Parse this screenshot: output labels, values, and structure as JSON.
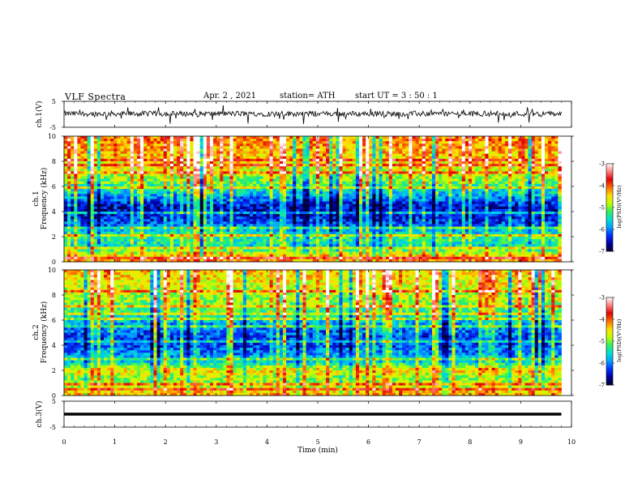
{
  "header": {
    "title": "VLF  Spectra",
    "date": "Apr. 2  , 2021",
    "station": "station= ATH",
    "start_ut": "start  UT  =   3  : 50 : 1"
  },
  "chart_data": [
    {
      "type": "line",
      "name": "ch1-waveform",
      "ylabel": "ch.1(V)",
      "ylim": [
        -5,
        5
      ],
      "yticks": [
        "5",
        "-5"
      ],
      "x_range_min": [
        0,
        9.8
      ],
      "baseline": 0.2,
      "noise_amplitude": 1.5
    },
    {
      "type": "heatmap",
      "name": "ch1-spectrogram",
      "ylabel_channel": "ch.1",
      "ylabel": "Frequency (kHz)",
      "ylim": [
        0,
        10
      ],
      "yticks": [
        "0",
        "2",
        "4",
        "6",
        "8",
        "10"
      ],
      "x_range_min": [
        0,
        9.8
      ],
      "band_profile_khz": [
        [
          0,
          -4.2
        ],
        [
          0.6,
          -4.6
        ],
        [
          1.2,
          -5.6
        ],
        [
          2.0,
          -5.3
        ],
        [
          2.6,
          -5.9
        ],
        [
          3.4,
          -6.4
        ],
        [
          4.4,
          -6.6
        ],
        [
          5.2,
          -5.9
        ],
        [
          6.4,
          -5.1
        ],
        [
          7.5,
          -4.6
        ],
        [
          10,
          -4.1
        ]
      ],
      "colorbar": {
        "label": "log(PSD)(V²/Hz)",
        "range": [
          -7,
          -3
        ],
        "ticks": [
          "-3",
          "-4",
          "-5",
          "-6",
          "-7"
        ]
      }
    },
    {
      "type": "heatmap",
      "name": "ch2-spectrogram",
      "ylabel_channel": "ch.2",
      "ylabel": "Frequency (kHz)",
      "ylim": [
        0,
        10
      ],
      "yticks": [
        "0",
        "2",
        "4",
        "6",
        "8",
        "10"
      ],
      "x_range_min": [
        0,
        9.8
      ],
      "band_profile_khz": [
        [
          0,
          -4.3
        ],
        [
          0.8,
          -4.8
        ],
        [
          1.4,
          -5.0
        ],
        [
          2.0,
          -4.5
        ],
        [
          2.6,
          -5.6
        ],
        [
          3.4,
          -6.0
        ],
        [
          4.4,
          -6.3
        ],
        [
          5.4,
          -6.0
        ],
        [
          6.5,
          -5.4
        ],
        [
          7.6,
          -4.9
        ],
        [
          10,
          -4.4
        ]
      ],
      "colorbar": {
        "label": "log(PSD)(V²/Hz)",
        "range": [
          -7,
          -3
        ],
        "ticks": [
          "-3",
          "-4",
          "-5",
          "-6",
          "-7"
        ]
      }
    },
    {
      "type": "line",
      "name": "ch3-waveform",
      "ylabel": "ch.3(V)",
      "ylim": [
        -5,
        5
      ],
      "yticks": [
        "5",
        "-5"
      ],
      "x_range_min": [
        0,
        9.8
      ],
      "baseline": 0.0,
      "noise_amplitude": 0.0
    }
  ],
  "xaxis": {
    "label": "Time  (min)",
    "range": [
      0,
      10
    ],
    "ticks": [
      "0",
      "1",
      "2",
      "3",
      "4",
      "5",
      "6",
      "7",
      "8",
      "9",
      "10"
    ]
  },
  "colormap": [
    "#000030",
    "#0000a0",
    "#0030ff",
    "#00a0ff",
    "#00e0d0",
    "#30f060",
    "#c0ff00",
    "#ffe000",
    "#ff7000",
    "#e00000",
    "#ff8080",
    "#ffffff"
  ]
}
